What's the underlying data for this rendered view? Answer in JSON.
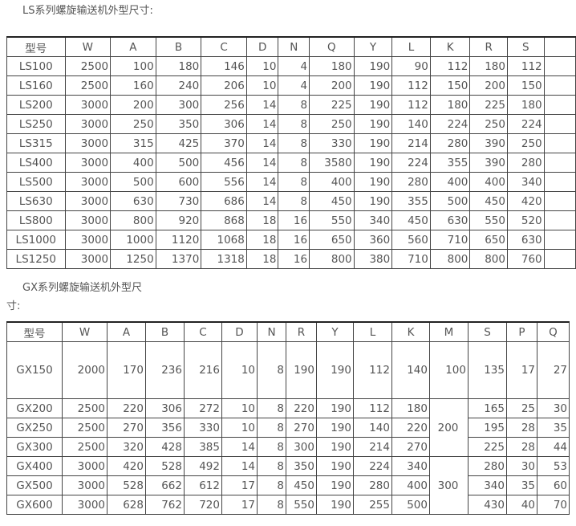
{
  "ls": {
    "title": "LS系列螺旋输送机外型尺寸:",
    "headers": [
      "型号",
      "W",
      "A",
      "B",
      "C",
      "D",
      "N",
      "Q",
      "Y",
      "L",
      "K",
      "R",
      "S",
      ""
    ],
    "rows": [
      [
        "LS100",
        "2500",
        "100",
        "180",
        "146",
        "10",
        "4",
        "180",
        "190",
        "90",
        "112",
        "180",
        "112",
        ""
      ],
      [
        "LS160",
        "2500",
        "160",
        "240",
        "206",
        "10",
        "4",
        "200",
        "190",
        "112",
        "150",
        "200",
        "150",
        ""
      ],
      [
        "LS200",
        "3000",
        "200",
        "300",
        "256",
        "14",
        "8",
        "225",
        "190",
        "112",
        "180",
        "225",
        "180",
        ""
      ],
      [
        "LS250",
        "3000",
        "250",
        "350",
        "306",
        "14",
        "8",
        "250",
        "190",
        "140",
        "224",
        "250",
        "224",
        ""
      ],
      [
        "LS315",
        "3000",
        "315",
        "425",
        "370",
        "14",
        "8",
        "330",
        "190",
        "214",
        "280",
        "390",
        "250",
        ""
      ],
      [
        "LS400",
        "3000",
        "400",
        "500",
        "456",
        "14",
        "8",
        "3580",
        "190",
        "224",
        "355",
        "390",
        "280",
        ""
      ],
      [
        "LS500",
        "3000",
        "500",
        "600",
        "556",
        "14",
        "8",
        "400",
        "190",
        "280",
        "400",
        "400",
        "340",
        ""
      ],
      [
        "LS630",
        "3000",
        "630",
        "730",
        "686",
        "14",
        "8",
        "450",
        "190",
        "355",
        "500",
        "450",
        "420",
        ""
      ],
      [
        "LS800",
        "3000",
        "800",
        "920",
        "868",
        "18",
        "16",
        "550",
        "340",
        "450",
        "630",
        "550",
        "520",
        ""
      ],
      [
        "LS1000",
        "3000",
        "1000",
        "1120",
        "1068",
        "18",
        "16",
        "650",
        "360",
        "560",
        "710",
        "650",
        "630",
        ""
      ],
      [
        "LS1250",
        "3000",
        "1250",
        "1370",
        "1318",
        "18",
        "16",
        "800",
        "380",
        "710",
        "800",
        "800",
        "760",
        ""
      ]
    ]
  },
  "gx": {
    "title_line1": "GX系列螺旋输送机外型尺",
    "title_line2": "寸:",
    "headers": [
      "型号",
      "W",
      "A",
      "B",
      "C",
      "D",
      "N",
      "R",
      "Y",
      "L",
      "K",
      "M",
      "S",
      "P",
      "Q"
    ],
    "rows": [
      [
        "GX150",
        "2000",
        "170",
        "236",
        "216",
        "10",
        "8",
        "190",
        "190",
        "112",
        "140",
        "100",
        "135",
        "17",
        "27"
      ],
      [
        "GX200",
        "2500",
        "220",
        "306",
        "272",
        "10",
        "8",
        "220",
        "190",
        "112",
        "180",
        "200",
        "165",
        "25",
        "30"
      ],
      [
        "GX250",
        "2500",
        "270",
        "356",
        "330",
        "10",
        "8",
        "270",
        "190",
        "140",
        "220",
        null,
        "195",
        "28",
        "35"
      ],
      [
        "GX300",
        "2500",
        "320",
        "428",
        "385",
        "14",
        "8",
        "300",
        "190",
        "214",
        "270",
        null,
        "225",
        "28",
        "44"
      ],
      [
        "GX400",
        "3000",
        "420",
        "528",
        "492",
        "14",
        "8",
        "350",
        "190",
        "224",
        "340",
        "300",
        "280",
        "30",
        "53"
      ],
      [
        "GX500",
        "3000",
        "528",
        "662",
        "612",
        "17",
        "8",
        "450",
        "190",
        "280",
        "400",
        null,
        "340",
        "35",
        "60"
      ],
      [
        "GX600",
        "3000",
        "628",
        "762",
        "720",
        "17",
        "8",
        "550",
        "190",
        "255",
        "500",
        null,
        "430",
        "40",
        "70"
      ]
    ],
    "m_rowspans": {
      "1": 3,
      "4": 3
    }
  }
}
